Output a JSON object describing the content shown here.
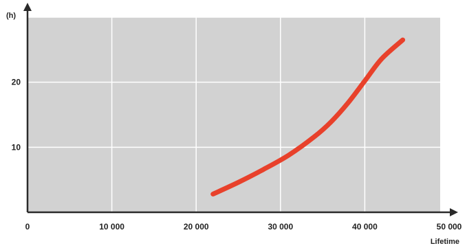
{
  "chart_data": {
    "type": "line",
    "title": "",
    "xlabel": "Lifetime",
    "ylabel": "(h)",
    "xlim": [
      0,
      50000
    ],
    "ylim": [
      0,
      30
    ],
    "x_ticks": [
      {
        "value": 0,
        "label": "0"
      },
      {
        "value": 10000,
        "label": "10 000"
      },
      {
        "value": 20000,
        "label": "20 000"
      },
      {
        "value": 30000,
        "label": "30 000"
      },
      {
        "value": 40000,
        "label": "40 000"
      },
      {
        "value": 50000,
        "label": "50 000"
      }
    ],
    "y_ticks": [
      {
        "value": 10,
        "label": "10"
      },
      {
        "value": 20,
        "label": "20"
      }
    ],
    "grid": true,
    "legend": "none",
    "series": [
      {
        "color": "#e8412b",
        "x": [
          22000,
          25000,
          28000,
          31000,
          34000,
          36000,
          38000,
          40000,
          42000,
          44500
        ],
        "y": [
          2.8,
          4.6,
          6.6,
          8.8,
          11.6,
          13.9,
          16.8,
          20.2,
          23.6,
          26.5
        ]
      }
    ],
    "colors": {
      "plot_background": "#d2d2d2",
      "grid": "#ffffff",
      "axis": "#2a2a2a"
    }
  }
}
